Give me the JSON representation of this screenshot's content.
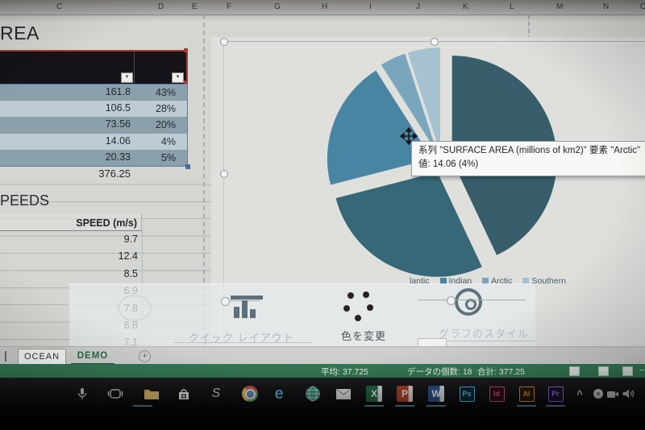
{
  "columns": [
    "C",
    "D",
    "E",
    "F",
    "G",
    "H",
    "I",
    "J",
    "K",
    "L",
    "M",
    "N",
    "O"
  ],
  "area_table": {
    "title_visible": "REA",
    "rows": [
      {
        "value": "161.8",
        "pct": "43%"
      },
      {
        "value": "106.5",
        "pct": "28%"
      },
      {
        "value": "73.56",
        "pct": "20%"
      },
      {
        "value": "14.06",
        "pct": "4%"
      },
      {
        "value": "20.33",
        "pct": "5%"
      }
    ],
    "total": "376.25"
  },
  "speed_table": {
    "title_visible": "PEEDS",
    "header": "SPEED (m/s)",
    "values": [
      "9.7",
      "12.4",
      "8.5",
      "6.9",
      "7.8",
      "6.8",
      "7.1"
    ]
  },
  "chart_data": {
    "type": "pie",
    "series_name": "SURFACE AREA (millions of km2)",
    "values": [
      161.8,
      106.5,
      73.56,
      14.06,
      20.33
    ],
    "fractions": [
      0.43,
      0.28,
      0.2,
      0.04,
      0.05
    ],
    "percent_labels": [
      "43%",
      "28%",
      "20%",
      "4%",
      "5%"
    ],
    "legend_visible": [
      "lantic",
      "Indian",
      "Arctic",
      "Southern"
    ],
    "legend_position": "bottom",
    "exploded": true,
    "colors": [
      "#31616f",
      "#2e6b7e",
      "#3d89ad",
      "#72a9c6",
      "#a3c4d5"
    ],
    "highlighted": {
      "category": "Arctic",
      "value": 14.06,
      "percent": "4%"
    }
  },
  "tooltip": {
    "line1": "系列 \"SURFACE AREA (millions of km2)\" 要素 \"Arctic\"",
    "line2": "値: 14.06 (4%)"
  },
  "chart_toolbar": {
    "quick_layout": "クイック レイアウト",
    "change_colors": "色を変更",
    "chart_style": "グラフのスタイル"
  },
  "sheet_tabs": {
    "ocean": "OCEAN",
    "demo": "DEMO",
    "add": "+"
  },
  "status_bar": {
    "average": "平均: 37.725",
    "count": "データの個数: 18",
    "sum": "合計: 377.25",
    "zoom_out": "−"
  },
  "taskbar": {
    "sway": "S",
    "edge": "e",
    "excel": "X",
    "powerpoint": "P",
    "word": "W",
    "photoshop": "Ps",
    "indesign": "Id",
    "illustrator": "Ai",
    "premiere": "Pr",
    "chevron": "^",
    "tray_x": "×"
  },
  "colors": {
    "excel_green": "#287c4f",
    "selection_blue": "#4f81bd",
    "selection_red": "#b23b2d"
  }
}
